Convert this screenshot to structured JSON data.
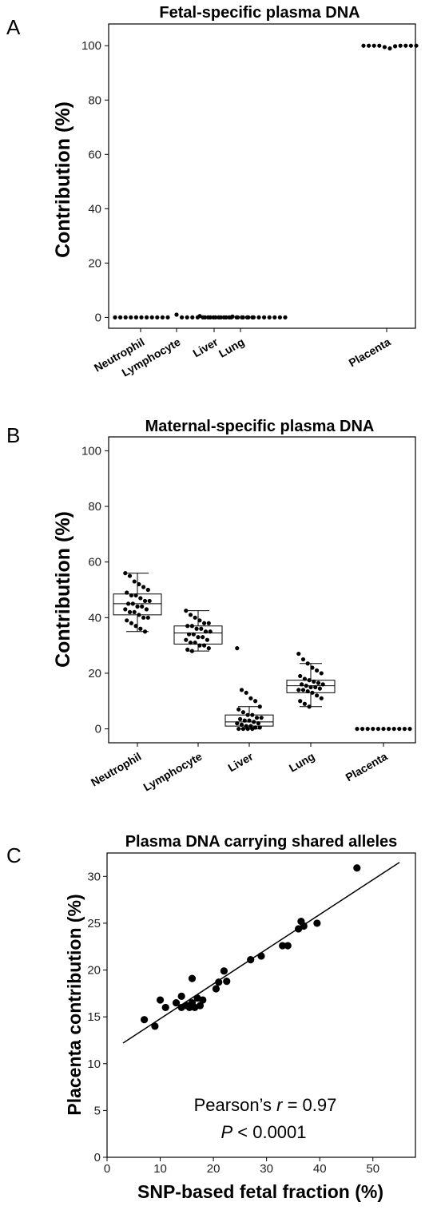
{
  "chart_data": [
    {
      "panel": "A",
      "type": "scatter",
      "title": "Fetal-specific plasma DNA",
      "ylabel": "Contribution (%)",
      "ylim": [
        -4,
        108
      ],
      "yticks": [
        "0",
        "20",
        "40",
        "60",
        "80",
        "100"
      ],
      "categories": [
        "Neutrophil",
        "Lymphocyte",
        "Liver",
        "Lung",
        "Placenta"
      ],
      "series": [
        {
          "values": [
            0,
            0,
            0,
            0,
            0,
            0,
            0,
            0,
            0,
            0,
            0
          ]
        },
        {
          "values": [
            1,
            0,
            0,
            0,
            0,
            0,
            0,
            0,
            0,
            0,
            0
          ]
        },
        {
          "values": [
            0.5,
            0,
            0,
            0,
            0,
            0,
            0,
            0,
            0,
            0,
            0
          ]
        },
        {
          "values": [
            0.3,
            0,
            0,
            0,
            0,
            0,
            0,
            0,
            0,
            0,
            0
          ]
        },
        {
          "values": [
            100,
            100,
            100,
            100,
            99.5,
            99,
            99.8,
            100,
            100,
            100,
            100
          ]
        }
      ]
    },
    {
      "panel": "B",
      "type": "box",
      "title": "Maternal-specific plasma DNA",
      "ylabel": "Contribution (%)",
      "ylim": [
        -5,
        105
      ],
      "yticks": [
        "0",
        "20",
        "40",
        "60",
        "80",
        "100"
      ],
      "categories": [
        "Neutrophil",
        "Lymphocyte",
        "Liver",
        "Lung",
        "Placenta"
      ],
      "boxes": [
        {
          "whisker_low": 35,
          "q1": 41,
          "median": 45,
          "q3": 48.5,
          "whisker_high": 56
        },
        {
          "whisker_low": 28,
          "q1": 30.5,
          "median": 34.5,
          "q3": 37,
          "whisker_high": 42.5
        },
        {
          "whisker_low": 0,
          "q1": 1,
          "median": 2.5,
          "q3": 5,
          "whisker_high": 8
        },
        {
          "whisker_low": 8,
          "q1": 13,
          "median": 15.5,
          "q3": 17.5,
          "whisker_high": 23.5
        }
      ],
      "points": [
        [
          56,
          55,
          53,
          52,
          51,
          50,
          49,
          48,
          48,
          47,
          46,
          46,
          45,
          45,
          44,
          44,
          43,
          43,
          42,
          42,
          41,
          40,
          40,
          39,
          38,
          37,
          36,
          35
        ],
        [
          42.5,
          41,
          40,
          39,
          38,
          38,
          37,
          37,
          36,
          36,
          35,
          35,
          34,
          34,
          33,
          33,
          32,
          32,
          31,
          31,
          30,
          30,
          29,
          28.5,
          28
        ],
        [
          29,
          14,
          13,
          11,
          10,
          8,
          7,
          6,
          5,
          5,
          4,
          4,
          3.5,
          3,
          3,
          2.5,
          2,
          2,
          1.5,
          1,
          1,
          0.5,
          0.5,
          0,
          0,
          0,
          0
        ],
        [
          27,
          25,
          23.5,
          22,
          21,
          20,
          19,
          18,
          17.5,
          17,
          16.5,
          16,
          16,
          15.5,
          15,
          15,
          14.5,
          14,
          14,
          13.5,
          13,
          12,
          11,
          10,
          9,
          8
        ],
        [
          0,
          0,
          0,
          0,
          0,
          0,
          0,
          0,
          0,
          0,
          0
        ]
      ]
    },
    {
      "panel": "C",
      "type": "scatter",
      "title": "Plasma DNA carrying shared alleles",
      "xlabel": "SNP-based fetal fraction (%)",
      "ylabel": "Placenta contribution (%)",
      "xlim": [
        0,
        58
      ],
      "ylim": [
        0,
        32.5
      ],
      "xticks": [
        "0",
        "10",
        "20",
        "30",
        "40",
        "50"
      ],
      "yticks": [
        "0",
        "5",
        "10",
        "15",
        "20",
        "25",
        "30"
      ],
      "points": [
        [
          7,
          14.7
        ],
        [
          9,
          14
        ],
        [
          10,
          16.8
        ],
        [
          11,
          16
        ],
        [
          13,
          16.5
        ],
        [
          14,
          17.2
        ],
        [
          14,
          16
        ],
        [
          15,
          16.2
        ],
        [
          15.5,
          16
        ],
        [
          16,
          19.1
        ],
        [
          16,
          16.5
        ],
        [
          16.5,
          16
        ],
        [
          17,
          17
        ],
        [
          17.5,
          16.2
        ],
        [
          18,
          16.8
        ],
        [
          20.5,
          18
        ],
        [
          21,
          18.7
        ],
        [
          22,
          19.9
        ],
        [
          22.5,
          18.8
        ],
        [
          27,
          21.1
        ],
        [
          29,
          21.5
        ],
        [
          33,
          22.6
        ],
        [
          34,
          22.6
        ],
        [
          36,
          24.4
        ],
        [
          36.5,
          25.2
        ],
        [
          37,
          24.7
        ],
        [
          39.5,
          25
        ],
        [
          47,
          30.9
        ]
      ],
      "fit_line": [
        [
          3,
          12.2
        ],
        [
          55,
          31.5
        ]
      ],
      "stat_prefix": "Pearson’s ",
      "stat_r_symbol": "r",
      "stat_r_value": " = 0.97",
      "stat_p_symbol": "P",
      "stat_p_value": " < 0.0001"
    }
  ],
  "panel_labels": [
    "A",
    "B",
    "C"
  ]
}
